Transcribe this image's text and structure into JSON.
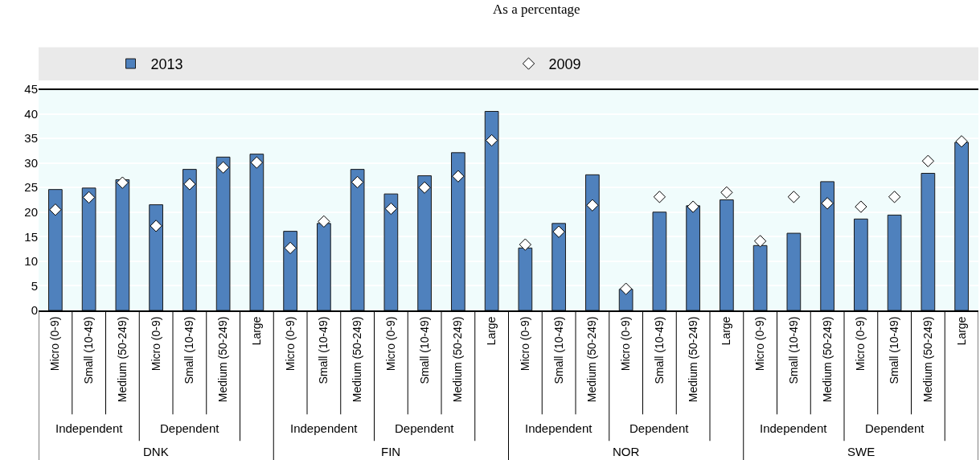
{
  "chart_data": {
    "type": "bar",
    "subtitle": "As a percentage",
    "categories": [
      "Micro (0-9)",
      "Small (10-49)",
      "Medium (50-249)",
      "Micro (0-9)",
      "Small (10-49)",
      "Medium (50-249)",
      "Large",
      "Micro (0-9)",
      "Small (10-49)",
      "Medium (50-249)",
      "Micro (0-9)",
      "Small (10-49)",
      "Medium (50-249)",
      "Large",
      "Micro (0-9)",
      "Small (10-49)",
      "Medium (50-249)",
      "Micro (0-9)",
      "Small (10-49)",
      "Medium (50-249)",
      "Large",
      "Micro (0-9)",
      "Small (10-49)",
      "Medium (50-249)",
      "Micro (0-9)",
      "Small (10-49)",
      "Medium (50-249)",
      "Large"
    ],
    "series": [
      {
        "name": "2013",
        "color": "#4f81bd",
        "values": [
          24.6,
          24.9,
          26.6,
          21.5,
          28.7,
          31.2,
          31.8,
          16.1,
          17.7,
          28.7,
          23.7,
          27.4,
          32.1,
          40.5,
          12.7,
          17.7,
          27.6,
          4.3,
          20.0,
          21.3,
          22.5,
          13.2,
          15.7,
          26.2,
          18.6,
          19.4,
          27.9,
          34.2
        ]
      },
      {
        "name": "2009",
        "type": "scatter",
        "color": "#ffffff",
        "marker": "diamond",
        "values": [
          20.5,
          23.0,
          26.0,
          17.2,
          25.7,
          29.1,
          30.1,
          12.7,
          18.1,
          26.1,
          20.7,
          25.0,
          27.3,
          34.6,
          13.4,
          16.0,
          21.4,
          4.4,
          23.1,
          21.1,
          24.0,
          14.1,
          23.1,
          21.8,
          21.1,
          23.1,
          30.4,
          34.4
        ]
      }
    ],
    "annotations": [
      "Independent",
      "Dependent",
      "DNK",
      "Independent",
      "Dependent",
      "FIN",
      "Independent",
      "Dependent",
      "NOR",
      "Independent",
      "Dependent",
      "SWE"
    ],
    "ylim": [
      0,
      45
    ],
    "yticks": [
      0,
      5,
      10,
      15,
      20,
      25,
      30,
      35,
      40,
      45
    ],
    "grid": true,
    "legend": "top"
  }
}
